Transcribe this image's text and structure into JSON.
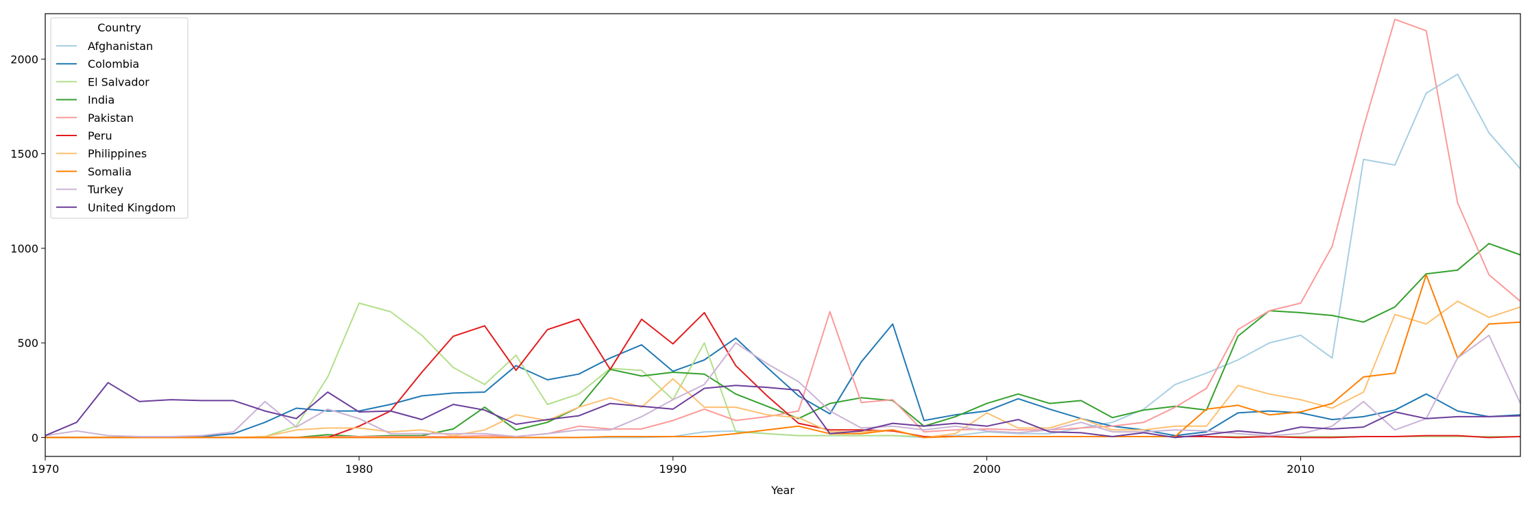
{
  "chart_data": {
    "type": "line",
    "xlabel": "Year",
    "ylabel": "",
    "xlim": [
      1970,
      2017
    ],
    "ylim": [
      -100,
      2240
    ],
    "xticks": [
      1970,
      1980,
      1990,
      2000,
      2010
    ],
    "yticks": [
      0,
      500,
      1000,
      1500,
      2000
    ],
    "grid": false,
    "legend": {
      "title": "Country",
      "placement": "top-left"
    },
    "x": [
      1970,
      1971,
      1972,
      1973,
      1974,
      1975,
      1976,
      1977,
      1978,
      1979,
      1980,
      1981,
      1982,
      1983,
      1984,
      1985,
      1986,
      1987,
      1988,
      1989,
      1990,
      1991,
      1992,
      1993,
      1994,
      1995,
      1996,
      1997,
      1998,
      1999,
      2000,
      2001,
      2002,
      2003,
      2004,
      2005,
      2006,
      2007,
      2008,
      2009,
      2010,
      2011,
      2012,
      2013,
      2014,
      2015,
      2016,
      2017
    ],
    "series": [
      {
        "name": "Afghanistan",
        "color": "#a6cee3",
        "values": [
          0,
          0,
          0,
          0,
          0,
          0,
          0,
          0,
          0,
          0,
          0,
          0,
          0,
          0,
          0,
          0,
          0,
          0,
          0,
          0,
          5,
          30,
          35,
          20,
          10,
          10,
          10,
          10,
          0,
          10,
          30,
          20,
          20,
          50,
          80,
          150,
          280,
          340,
          410,
          500,
          540,
          420,
          1470,
          1440,
          1820,
          1920,
          1610,
          1420
        ]
      },
      {
        "name": "Colombia",
        "color": "#1f78b4",
        "values": [
          0,
          0,
          0,
          0,
          0,
          5,
          20,
          80,
          155,
          140,
          140,
          175,
          220,
          235,
          240,
          380,
          305,
          335,
          420,
          490,
          350,
          410,
          525,
          370,
          220,
          125,
          400,
          600,
          90,
          120,
          140,
          205,
          150,
          100,
          60,
          40,
          10,
          30,
          130,
          140,
          130,
          95,
          110,
          145,
          230,
          140,
          110,
          120
        ]
      },
      {
        "name": "El Salvador",
        "color": "#b2df8a",
        "values": [
          0,
          0,
          0,
          0,
          0,
          0,
          0,
          5,
          60,
          320,
          710,
          665,
          540,
          370,
          280,
          435,
          175,
          230,
          365,
          355,
          200,
          500,
          30,
          20,
          10,
          10,
          10,
          10,
          5,
          5,
          5,
          5,
          5,
          5,
          5,
          5,
          5,
          5,
          5,
          5,
          5,
          5,
          5,
          5,
          5,
          5,
          5,
          5
        ]
      },
      {
        "name": "India",
        "color": "#33a02c",
        "values": [
          0,
          0,
          0,
          0,
          0,
          0,
          0,
          0,
          0,
          15,
          5,
          10,
          10,
          45,
          160,
          40,
          80,
          160,
          360,
          325,
          345,
          335,
          230,
          165,
          100,
          180,
          210,
          195,
          60,
          110,
          180,
          230,
          180,
          195,
          105,
          145,
          165,
          145,
          535,
          670,
          660,
          645,
          610,
          690,
          865,
          885,
          1025,
          965
        ]
      },
      {
        "name": "Pakistan",
        "color": "#fb9a99",
        "values": [
          0,
          0,
          0,
          0,
          0,
          0,
          0,
          0,
          0,
          5,
          5,
          5,
          5,
          5,
          10,
          5,
          20,
          60,
          45,
          45,
          90,
          150,
          90,
          110,
          140,
          665,
          185,
          200,
          30,
          40,
          45,
          40,
          40,
          50,
          60,
          80,
          160,
          260,
          570,
          670,
          710,
          1010,
          1640,
          2210,
          2150,
          1240,
          860,
          720
        ]
      },
      {
        "name": "Peru",
        "color": "#e31a1c",
        "values": [
          0,
          0,
          0,
          0,
          0,
          0,
          0,
          0,
          0,
          0,
          60,
          140,
          345,
          535,
          590,
          355,
          570,
          625,
          360,
          625,
          495,
          660,
          380,
          220,
          75,
          40,
          40,
          35,
          5,
          5,
          5,
          5,
          5,
          5,
          5,
          5,
          5,
          5,
          0,
          5,
          0,
          0,
          5,
          5,
          10,
          10,
          0,
          5
        ]
      },
      {
        "name": "Philippines",
        "color": "#fdbf6f",
        "values": [
          0,
          0,
          0,
          0,
          0,
          0,
          0,
          5,
          40,
          50,
          50,
          30,
          40,
          10,
          40,
          120,
          90,
          160,
          210,
          160,
          310,
          160,
          160,
          120,
          105,
          30,
          30,
          40,
          0,
          20,
          130,
          50,
          50,
          100,
          40,
          40,
          60,
          60,
          275,
          230,
          200,
          155,
          240,
          650,
          600,
          720,
          635,
          690
        ]
      },
      {
        "name": "Somalia",
        "color": "#ff7f00",
        "values": [
          0,
          0,
          0,
          0,
          0,
          0,
          0,
          0,
          0,
          0,
          0,
          0,
          0,
          0,
          0,
          0,
          0,
          0,
          5,
          5,
          5,
          5,
          20,
          40,
          60,
          20,
          20,
          40,
          0,
          5,
          5,
          5,
          5,
          5,
          5,
          5,
          5,
          150,
          170,
          120,
          135,
          180,
          320,
          340,
          860,
          420,
          600,
          610
        ]
      },
      {
        "name": "Turkey",
        "color": "#cab2d6",
        "values": [
          10,
          35,
          10,
          5,
          5,
          10,
          30,
          190,
          55,
          150,
          100,
          20,
          20,
          20,
          20,
          5,
          20,
          40,
          40,
          110,
          200,
          280,
          500,
          390,
          295,
          140,
          50,
          60,
          40,
          60,
          35,
          25,
          40,
          80,
          30,
          30,
          40,
          35,
          20,
          10,
          20,
          60,
          190,
          40,
          100,
          420,
          540,
          180
        ]
      },
      {
        "name": "United Kingdom",
        "color": "#6a3d9a",
        "values": [
          10,
          80,
          290,
          190,
          200,
          195,
          195,
          140,
          100,
          240,
          135,
          140,
          95,
          175,
          145,
          70,
          95,
          115,
          180,
          165,
          150,
          260,
          275,
          265,
          250,
          20,
          35,
          75,
          60,
          75,
          60,
          95,
          30,
          25,
          5,
          25,
          0,
          15,
          35,
          20,
          55,
          45,
          55,
          135,
          100,
          110,
          110,
          115
        ]
      }
    ]
  }
}
